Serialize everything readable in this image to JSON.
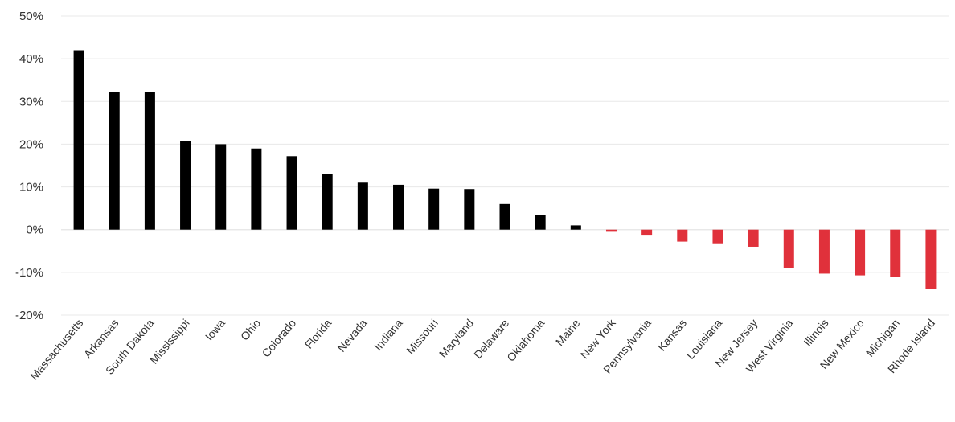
{
  "chart_data": {
    "type": "bar",
    "title": "",
    "xlabel": "",
    "ylabel": "",
    "ylim": [
      -20,
      50
    ],
    "yticks": [
      50,
      40,
      30,
      20,
      10,
      0,
      -10,
      -20
    ],
    "ytick_labels": [
      "50%",
      "40%",
      "30%",
      "20%",
      "10%",
      "0%",
      "-10%",
      "-20%"
    ],
    "grid": true,
    "colors": {
      "positive": "#000000",
      "negative": "#e0313b",
      "grid": "#e8e8e8"
    },
    "categories": [
      "Massachusetts",
      "Arkansas",
      "South Dakota",
      "Mississippi",
      "Iowa",
      "Ohio",
      "Colorado",
      "Florida",
      "Nevada",
      "Indiana",
      "Missouri",
      "Maryland",
      "Delaware",
      "Oklahoma",
      "Maine",
      "New York",
      "Pennsylvania",
      "Kansas",
      "Louisiana",
      "New Jersey",
      "West Virginia",
      "Illinois",
      "New Mexico",
      "Michigan",
      "Rhode Island"
    ],
    "values": [
      42,
      32.3,
      32.2,
      20.8,
      20,
      19,
      17.2,
      13,
      11,
      10.5,
      9.6,
      9.5,
      6,
      3.5,
      1,
      -0.5,
      -1.2,
      -2.8,
      -3.2,
      -4,
      -9,
      -10.3,
      -10.7,
      -11,
      -13.8
    ]
  }
}
